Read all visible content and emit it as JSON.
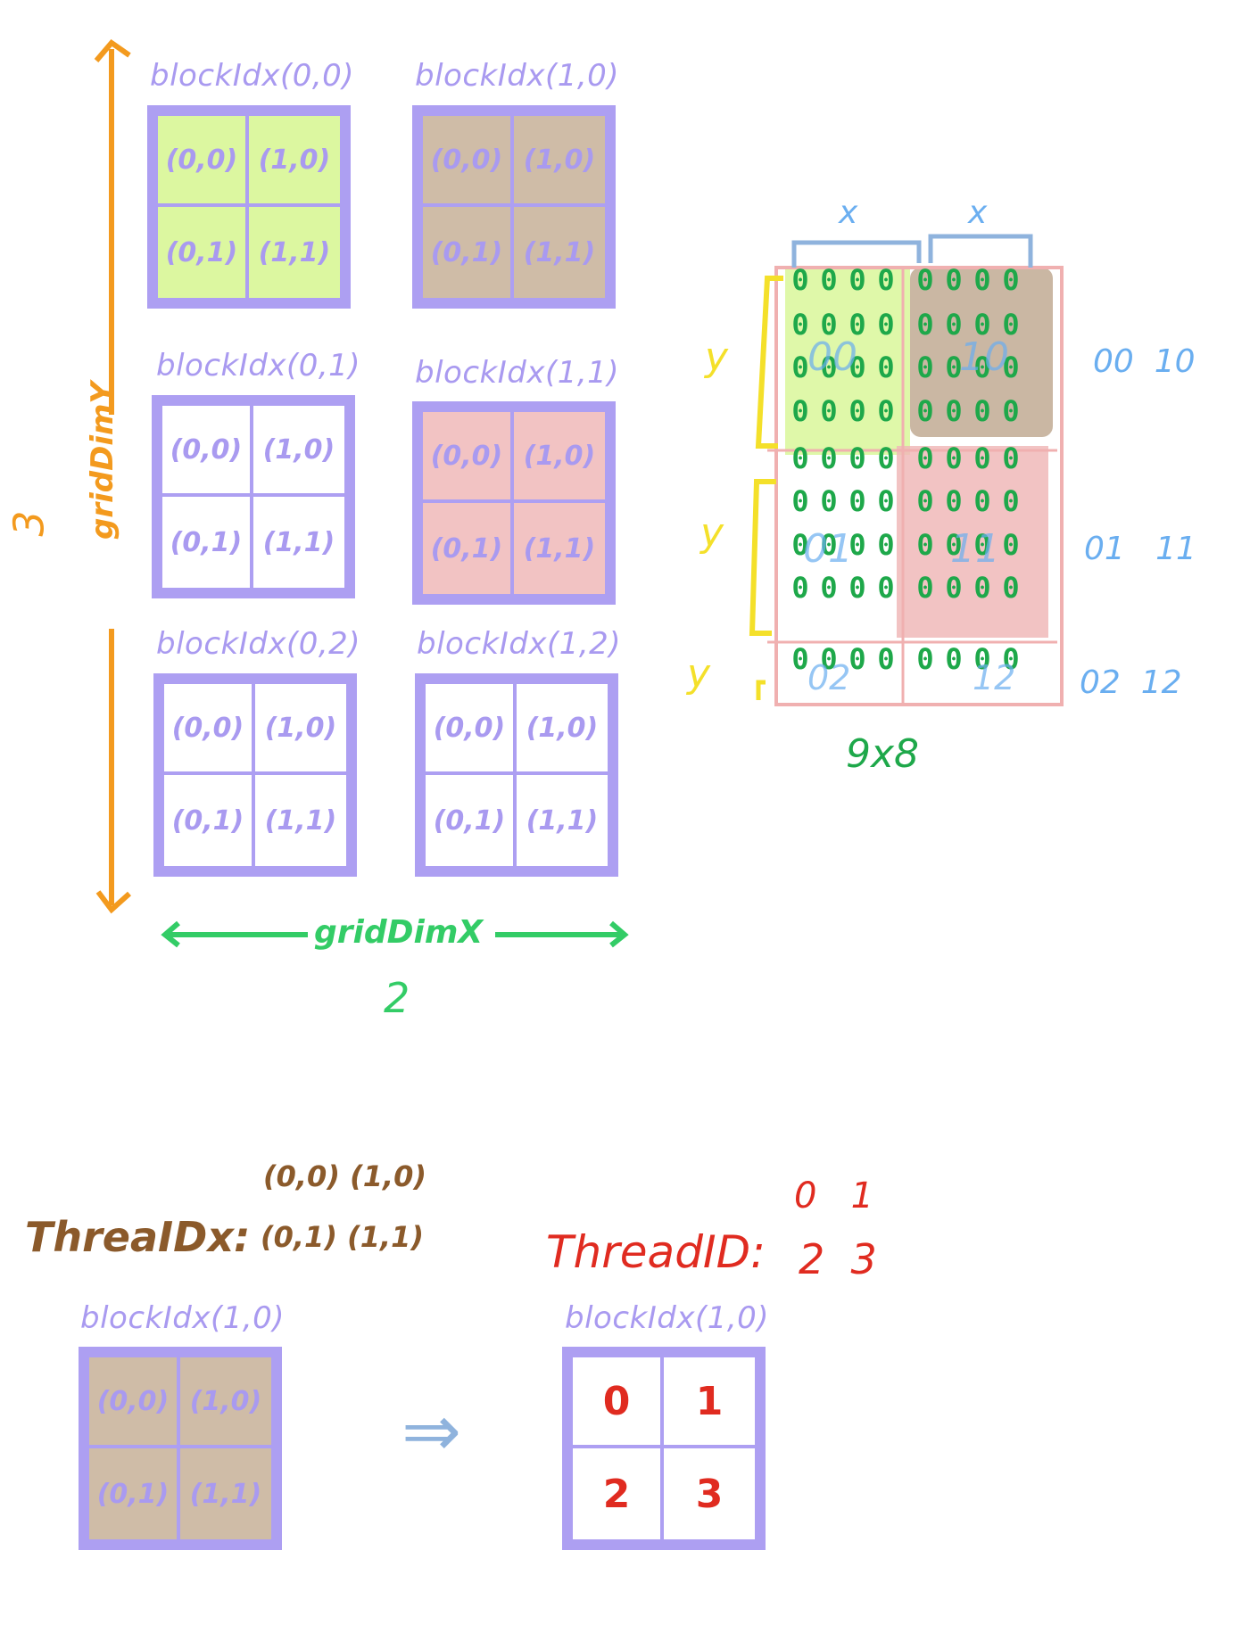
{
  "grid": {
    "blocks": [
      {
        "label": "blockIdx(0,0)",
        "fill": "#dcf7a0",
        "cells": [
          "(0,0)",
          "(1,0)",
          "(0,1)",
          "(1,1)"
        ]
      },
      {
        "label": "blockIdx(1,0)",
        "fill": "#cfbca7",
        "cells": [
          "(0,0)",
          "(1,0)",
          "(0,1)",
          "(1,1)"
        ]
      },
      {
        "label": "blockIdx(0,1)",
        "fill": "#ffffff",
        "cells": [
          "(0,0)",
          "(1,0)",
          "(0,1)",
          "(1,1)"
        ]
      },
      {
        "label": "blockIdx(1,1)",
        "fill": "#f2c3c3",
        "cells": [
          "(0,0)",
          "(1,0)",
          "(0,1)",
          "(1,1)"
        ]
      },
      {
        "label": "blockIdx(0,2)",
        "fill": "#ffffff",
        "cells": [
          "(0,0)",
          "(1,0)",
          "(0,1)",
          "(1,1)"
        ]
      },
      {
        "label": "blockIdx(1,2)",
        "fill": "#ffffff",
        "cells": [
          "(0,0)",
          "(1,0)",
          "(0,1)",
          "(1,1)"
        ]
      }
    ],
    "grid_dim_y_label": "gridDimY",
    "grid_dim_y_value": "3",
    "grid_dim_x_label": "gridDimX",
    "grid_dim_x_value": "2"
  },
  "matrix": {
    "x_label_left": "x",
    "x_label_right": "x",
    "y_labels": [
      "y",
      "y",
      "y"
    ],
    "cell_char": "0",
    "size_label": "9x8",
    "region_labels": [
      "00",
      "10",
      "01",
      "11",
      "02",
      "12"
    ],
    "row_labels": [
      {
        "left": "00",
        "right": "10"
      },
      {
        "left": "01",
        "right": "11"
      },
      {
        "left": "02",
        "right": "12"
      }
    ]
  },
  "bottom": {
    "thread_idx_label": "ThreaIDx:",
    "thread_idx_values": [
      "(0,0)",
      "(1,0)",
      "(0,1)",
      "(1,1)"
    ],
    "thread_id_label": "ThreadID:",
    "thread_id_values": [
      "0",
      "1",
      "2",
      "3"
    ],
    "left_block": {
      "label": "blockIdx(1,0)",
      "cells": [
        "(0,0)",
        "(1,0)",
        "(0,1)",
        "(1,1)"
      ]
    },
    "right_block": {
      "label": "blockIdx(1,0)",
      "cells": [
        "0",
        "1",
        "2",
        "3"
      ]
    },
    "arrow": "⇒"
  },
  "colors": {
    "block_border": "#ad9ff2",
    "green_fill": "#dcf7a0",
    "tan_fill": "#cfbca7",
    "pink_fill": "#f2c3c3",
    "orange": "#f39a1e",
    "green_text": "#33cc66",
    "blue_text": "#6aaef0",
    "red_text": "#e02b20",
    "brown_text": "#8b5a2b"
  }
}
